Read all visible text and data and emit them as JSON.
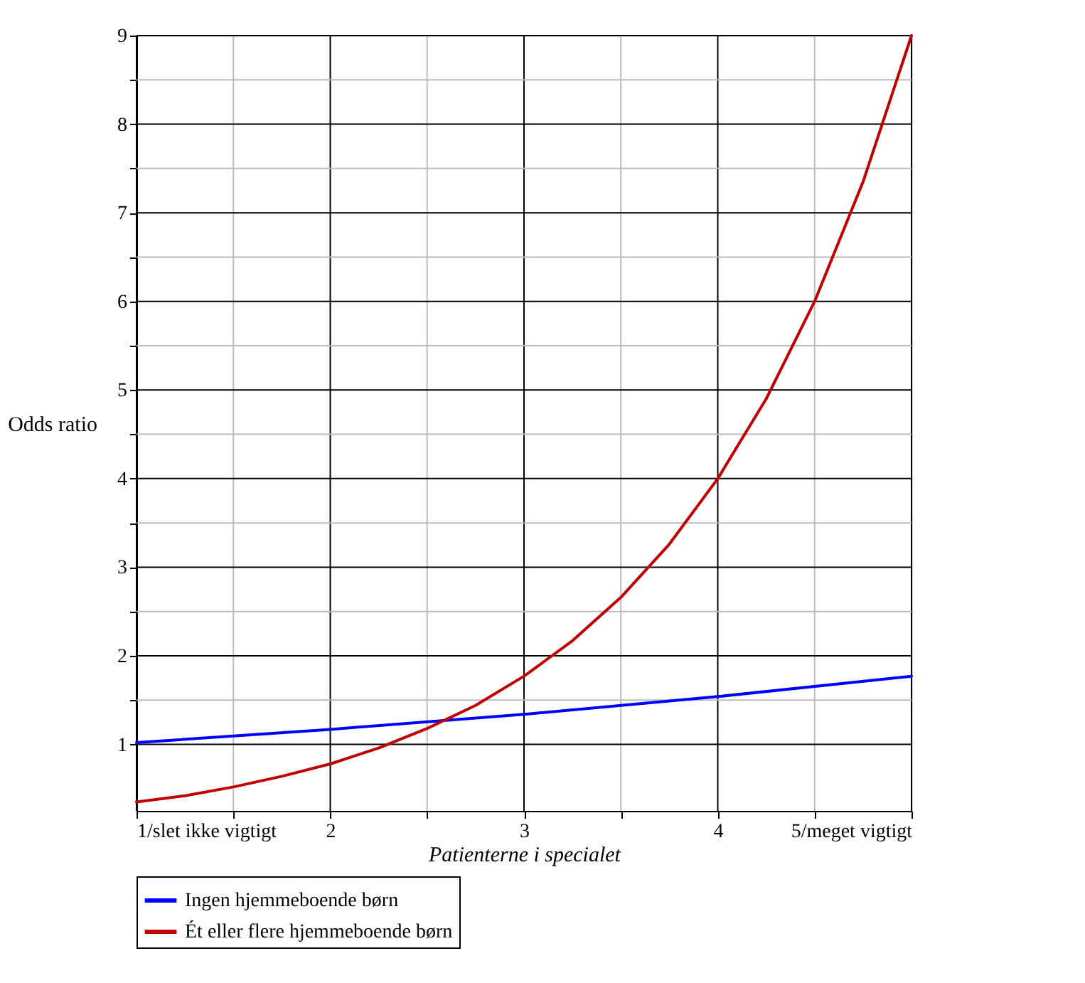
{
  "chart_data": {
    "type": "line",
    "xlabel": "Patienterne i specialet",
    "ylabel": "Odds ratio",
    "x": [
      1,
      1.25,
      1.5,
      1.75,
      2,
      2.25,
      2.5,
      2.75,
      3,
      3.25,
      3.5,
      3.75,
      4,
      4.25,
      4.5,
      4.75,
      5
    ],
    "series": [
      {
        "name": "Ingen hjemmeboende børn",
        "color": "#0000ff",
        "x": [
          1,
          2,
          3,
          4,
          5
        ],
        "values": [
          1.02,
          1.17,
          1.34,
          1.54,
          1.77
        ]
      },
      {
        "name": "Ét eller flere hjemmeboende børn",
        "color": "#c00000",
        "values": [
          0.35,
          0.42,
          0.52,
          0.64,
          0.78,
          0.96,
          1.18,
          1.44,
          1.77,
          2.17,
          2.66,
          3.26,
          4.0,
          4.9,
          6.0,
          7.35,
          9.0
        ]
      }
    ],
    "xlim": [
      1,
      5
    ],
    "ylim": [
      0.25,
      9
    ],
    "xticks": [
      {
        "value": 1,
        "label": "1/slet ikke vigtigt"
      },
      {
        "value": 1.5,
        "label": null
      },
      2,
      {
        "value": 2.5,
        "label": null
      },
      3,
      {
        "value": 3.5,
        "label": null
      },
      4,
      {
        "value": 4.5,
        "label": null
      },
      {
        "value": 5,
        "label": "5/meget vigtigt"
      }
    ],
    "yticks": [
      1,
      {
        "value": 1.5,
        "label": null
      },
      2,
      {
        "value": 2.5,
        "label": null
      },
      3,
      {
        "value": 3.5,
        "label": null
      },
      4,
      {
        "value": 4.5,
        "label": null
      },
      5,
      {
        "value": 5.5,
        "label": null
      },
      6,
      {
        "value": 6.5,
        "label": null
      },
      7,
      {
        "value": 7.5,
        "label": null
      },
      8,
      {
        "value": 8.5,
        "label": null
      },
      9
    ],
    "grid": true,
    "legend": "bottom",
    "line_style": "solid",
    "marker": "none"
  }
}
